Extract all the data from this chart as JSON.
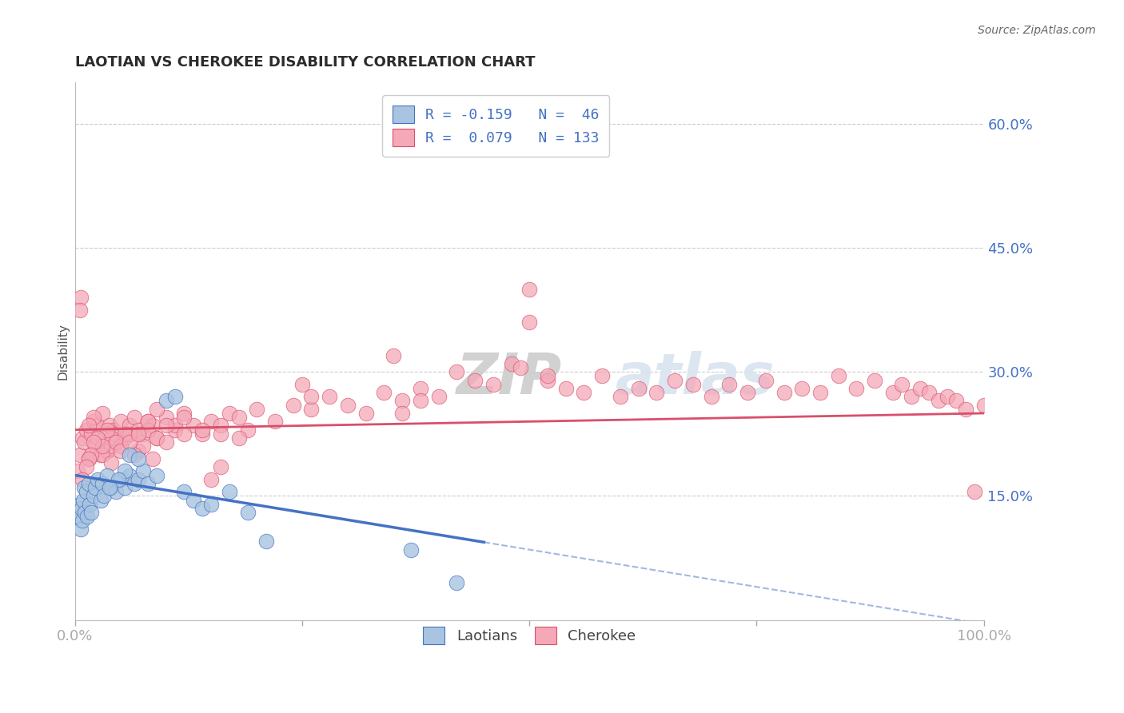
{
  "title": "LAOTIAN VS CHEROKEE DISABILITY CORRELATION CHART",
  "source": "Source: ZipAtlas.com",
  "ylabel": "Disability",
  "xlim": [
    0,
    100
  ],
  "ylim": [
    0,
    65
  ],
  "yticks": [
    15,
    30,
    45,
    60
  ],
  "laotian_color": "#a8c4e0",
  "cherokee_color": "#f4a8b8",
  "reg_laotian_color": "#4472c4",
  "reg_cherokee_color": "#d94f6a",
  "grid_color": "#cccccc",
  "title_color": "#2c2c2c",
  "axis_tick_color": "#4472c4",
  "watermark_color": "#d8e4f0",
  "laotian_x": [
    0.4,
    0.5,
    0.6,
    0.7,
    0.8,
    0.9,
    1.0,
    1.1,
    1.2,
    1.3,
    1.5,
    1.6,
    1.8,
    2.0,
    2.2,
    2.5,
    2.8,
    3.0,
    3.2,
    3.5,
    4.0,
    4.5,
    5.0,
    5.5,
    6.0,
    6.5,
    7.0,
    7.5,
    8.0,
    9.0,
    10.0,
    11.0,
    12.0,
    13.0,
    14.0,
    15.0,
    17.0,
    19.0,
    21.0,
    37.0,
    42.0,
    6.0,
    7.0,
    5.5,
    4.8,
    3.8
  ],
  "laotian_y": [
    12.5,
    14.0,
    11.0,
    13.5,
    12.0,
    14.5,
    16.0,
    13.0,
    15.5,
    12.5,
    16.5,
    14.0,
    13.0,
    15.0,
    16.0,
    17.0,
    14.5,
    16.5,
    15.0,
    17.5,
    16.0,
    15.5,
    17.0,
    16.0,
    17.5,
    16.5,
    17.0,
    18.0,
    16.5,
    17.5,
    26.5,
    27.0,
    15.5,
    14.5,
    13.5,
    14.0,
    15.5,
    13.0,
    9.5,
    8.5,
    4.5,
    20.0,
    19.5,
    18.0,
    17.0,
    16.0
  ],
  "cherokee_x": [
    0.3,
    0.5,
    0.8,
    1.0,
    1.2,
    1.5,
    1.8,
    2.0,
    2.2,
    2.5,
    2.8,
    3.0,
    3.2,
    3.5,
    3.8,
    4.0,
    4.2,
    4.5,
    5.0,
    5.5,
    6.0,
    6.5,
    7.0,
    7.5,
    8.0,
    8.5,
    9.0,
    10.0,
    11.0,
    12.0,
    13.0,
    14.0,
    15.0,
    16.0,
    17.0,
    18.0,
    19.0,
    20.0,
    22.0,
    24.0,
    26.0,
    28.0,
    30.0,
    32.0,
    34.0,
    36.0,
    38.0,
    40.0,
    42.0,
    44.0,
    46.0,
    48.0,
    50.0,
    52.0,
    54.0,
    56.0,
    58.0,
    60.0,
    62.0,
    64.0,
    66.0,
    68.0,
    70.0,
    72.0,
    74.0,
    76.0,
    78.0,
    80.0,
    82.0,
    84.0,
    86.0,
    88.0,
    90.0,
    91.0,
    92.0,
    93.0,
    94.0,
    95.0,
    96.0,
    97.0,
    98.0,
    99.0,
    100.0,
    3.0,
    4.0,
    5.0,
    6.0,
    7.0,
    8.0,
    9.0,
    10.0,
    11.0,
    12.0,
    2.0,
    3.5,
    5.5,
    7.5,
    1.5,
    2.5,
    4.5,
    6.5,
    8.5,
    3.0,
    2.0,
    1.8,
    1.5,
    1.2,
    0.8,
    0.6,
    0.5,
    50.0,
    52.0,
    49.0,
    35.0,
    36.0,
    38.0,
    25.0,
    26.0,
    15.0,
    16.0,
    4.0,
    5.0,
    6.0,
    7.0,
    8.0,
    9.0,
    10.0,
    12.0,
    14.0,
    16.0,
    18.0
  ],
  "cherokee_y": [
    18.0,
    20.0,
    22.0,
    21.5,
    23.0,
    19.5,
    22.5,
    24.0,
    21.0,
    23.5,
    20.0,
    25.0,
    22.0,
    20.5,
    23.5,
    21.0,
    23.0,
    22.5,
    24.0,
    22.0,
    23.5,
    24.5,
    23.0,
    22.5,
    24.0,
    23.5,
    22.0,
    24.5,
    23.0,
    25.0,
    23.5,
    22.5,
    24.0,
    23.5,
    25.0,
    24.5,
    23.0,
    25.5,
    24.0,
    26.0,
    25.5,
    27.0,
    26.0,
    25.0,
    27.5,
    26.5,
    28.0,
    27.0,
    30.0,
    29.0,
    28.5,
    31.0,
    36.0,
    29.0,
    28.0,
    27.5,
    29.5,
    27.0,
    28.0,
    27.5,
    29.0,
    28.5,
    27.0,
    28.5,
    27.5,
    29.0,
    27.5,
    28.0,
    27.5,
    29.5,
    28.0,
    29.0,
    27.5,
    28.5,
    27.0,
    28.0,
    27.5,
    26.5,
    27.0,
    26.5,
    25.5,
    15.5,
    26.0,
    20.0,
    22.0,
    21.0,
    22.5,
    20.5,
    23.0,
    22.0,
    21.5,
    23.5,
    22.5,
    24.5,
    23.0,
    22.5,
    21.0,
    23.5,
    22.0,
    21.5,
    20.0,
    19.5,
    21.0,
    21.5,
    20.0,
    19.5,
    18.5,
    17.0,
    39.0,
    37.5,
    40.0,
    29.5,
    30.5,
    32.0,
    25.0,
    26.5,
    28.5,
    27.0,
    17.0,
    18.5,
    19.0,
    20.5,
    21.5,
    22.5,
    24.0,
    25.5,
    23.5,
    24.5,
    23.0,
    22.5,
    22.0
  ]
}
